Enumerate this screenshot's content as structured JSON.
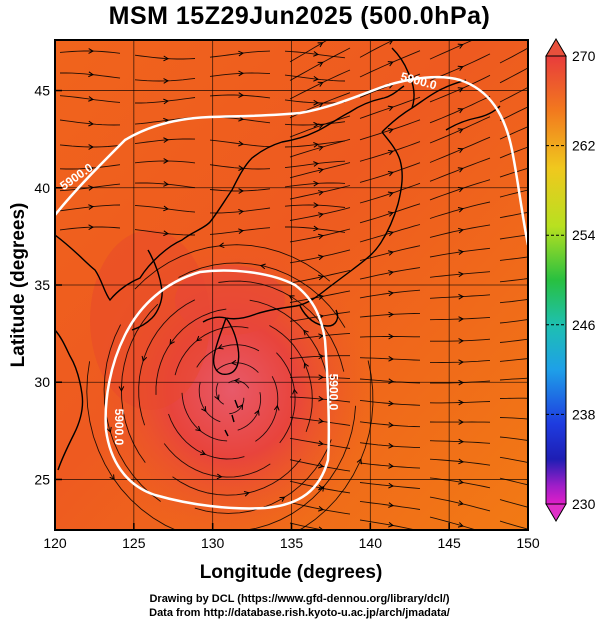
{
  "title": "MSM 15Z29Jun2025 (500.0hPa)",
  "chart_data": {
    "type": "map",
    "xlabel": "Longitude (degrees)",
    "ylabel": "Latitude  (degrees)",
    "xlim": [
      120,
      150
    ],
    "ylim": [
      22.4,
      47.6
    ],
    "xticks": [
      "120",
      "125",
      "130",
      "135",
      "140",
      "145",
      "150"
    ],
    "yticks": [
      "25",
      "30",
      "35",
      "40",
      "45"
    ],
    "grid": true,
    "colorbar": {
      "min": 230,
      "max": 270,
      "tick_labels": [
        "270",
        "262",
        "254",
        "246",
        "238",
        "230"
      ]
    },
    "contours": [
      {
        "value": 5900,
        "label": "5900.0",
        "label_points": [
          [
            143.0,
            45.3
          ],
          [
            121.5,
            40.4
          ],
          [
            137.4,
            29.5
          ],
          [
            123.8,
            27.7
          ]
        ]
      }
    ],
    "colors": {
      "warm": "#f06a1a",
      "hot": "#e8402a",
      "core": "#e85060",
      "contour": "#ffffff",
      "streamline": "#000000"
    }
  },
  "credits": {
    "line1": "Drawing by DCL (https://www.gfd-dennou.org/library/dcl/)",
    "line2": "Data from http://database.rish.kyoto-u.ac.jp/arch/jmadata/"
  }
}
